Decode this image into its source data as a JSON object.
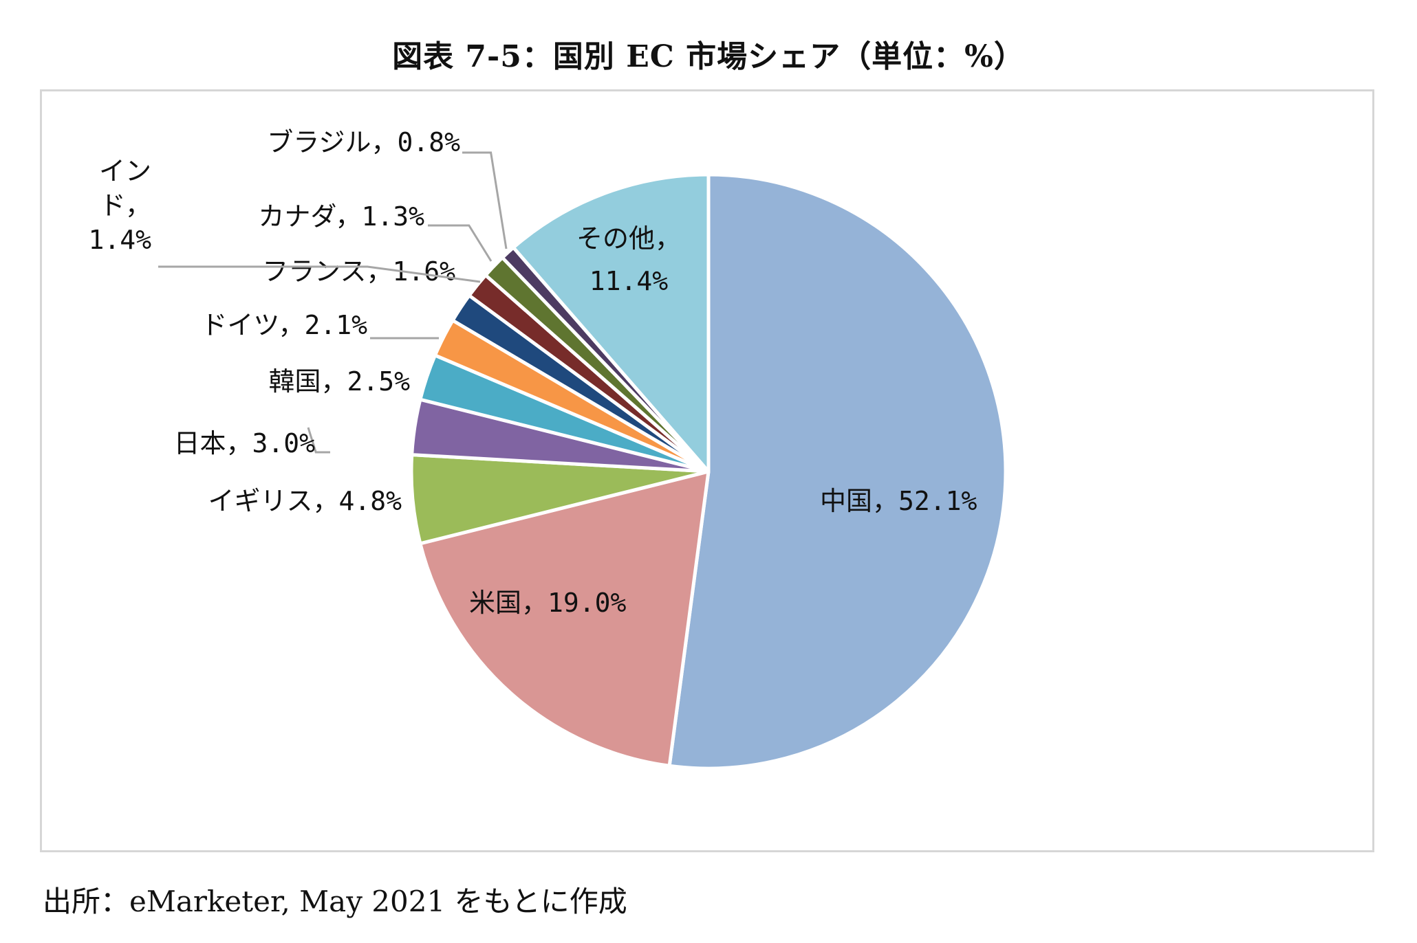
{
  "chart_data": {
    "type": "pie",
    "title": "図表 7-5：国別 EC 市場シェア（単位：%）",
    "start_angle_deg": 0,
    "direction": "clockwise",
    "slices": [
      {
        "label": "中国",
        "value": 52.1,
        "text": "中国，52.1%",
        "color": "#95b3d7"
      },
      {
        "label": "米国",
        "value": 19.0,
        "text": "米国，19.0%",
        "color": "#d99694"
      },
      {
        "label": "イギリス",
        "value": 4.8,
        "text": "イギリス，4.8%",
        "color": "#9bbb59"
      },
      {
        "label": "日本",
        "value": 3.0,
        "text": "日本，3.0%",
        "color": "#8064a2"
      },
      {
        "label": "韓国",
        "value": 2.5,
        "text": "韓国，2.5%",
        "color": "#4bacc6"
      },
      {
        "label": "ドイツ",
        "value": 2.1,
        "text": "ドイツ，2.1%",
        "color": "#f79646"
      },
      {
        "label": "フランス",
        "value": 1.6,
        "text": "フランス，1.6%",
        "color": "#1f497d"
      },
      {
        "label": "インド",
        "value": 1.4,
        "text_lines": [
          "イン",
          "ド，",
          "1.4%"
        ],
        "color": "#772c2a"
      },
      {
        "label": "カナダ",
        "value": 1.3,
        "text": "カナダ，1.3%",
        "color": "#5f7530"
      },
      {
        "label": "ブラジル",
        "value": 0.8,
        "text": "ブラジル，0.8%",
        "color": "#4d3b62"
      },
      {
        "label": "その他",
        "value": 11.4,
        "text_lines": [
          "その他，",
          "11.4%"
        ],
        "color": "#93cddd"
      }
    ]
  },
  "source_note": "出所：eMarketer, May 2021 をもとに作成"
}
